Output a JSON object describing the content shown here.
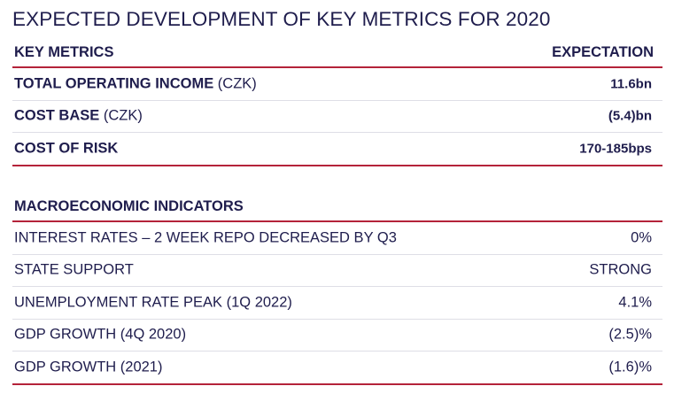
{
  "title": "EXPECTED DEVELOPMENT OF KEY METRICS FOR 2020",
  "key_metrics": {
    "header_label": "KEY METRICS",
    "header_value": "EXPECTATION",
    "rows": [
      {
        "label": "TOTAL OPERATING INCOME",
        "unit": " (CZK)",
        "value": "11.6bn"
      },
      {
        "label": "COST BASE",
        "unit": " (CZK)",
        "value": "(5.4)bn"
      },
      {
        "label": "COST OF RISK",
        "unit": "",
        "value": "170-185bps"
      }
    ]
  },
  "macro": {
    "header_label": "MACROECONOMIC INDICATORS",
    "rows": [
      {
        "label": "INTEREST RATES – 2 WEEK REPO DECREASED BY Q3",
        "value": "0%"
      },
      {
        "label": "STATE SUPPORT",
        "value": "STRONG"
      },
      {
        "label": "UNEMPLOYMENT RATE PEAK (1Q 2022)",
        "value": "4.1%"
      },
      {
        "label": "GDP GROWTH (4Q 2020)",
        "value": "(2.5)%"
      },
      {
        "label": "GDP GROWTH (2021)",
        "value": "(1.6)%"
      }
    ]
  },
  "colors": {
    "text": "#1f1d4d",
    "accent_rule": "#b4233a",
    "row_divider": "#dedee6"
  }
}
